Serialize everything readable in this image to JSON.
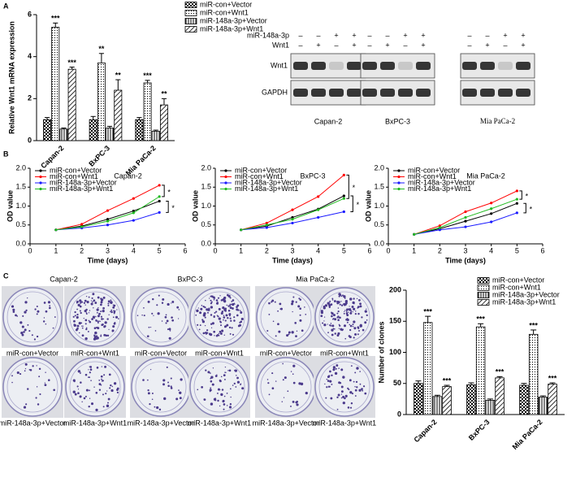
{
  "panel_labels": [
    "A",
    "B",
    "C"
  ],
  "chart_data": [
    {
      "type": "bar",
      "ylabel": "Relative Wnt1 mRNA expression",
      "categories": [
        "Capan-2",
        "BxPC-3",
        "Mia PaCa-2"
      ],
      "ylim": [
        0,
        6
      ],
      "yticks": [
        0,
        2,
        4,
        6
      ],
      "series": [
        {
          "name": "miR-con+Vector",
          "color": "#000000",
          "pattern": "checker",
          "values": [
            1.0,
            1.0,
            1.0
          ],
          "errors": [
            0.1,
            0.15,
            0.1
          ]
        },
        {
          "name": "miR-con+Wnt1",
          "color": "#000000",
          "pattern": "dots",
          "values": [
            5.4,
            3.7,
            2.75
          ],
          "errors": [
            0.2,
            0.45,
            0.12
          ],
          "significance": [
            "***",
            "**",
            "***"
          ]
        },
        {
          "name": "miR-148a-3p+Vector",
          "color": "#000000",
          "pattern": "vlines",
          "values": [
            0.55,
            0.6,
            0.45
          ],
          "errors": [
            0.05,
            0.08,
            0.05
          ]
        },
        {
          "name": "miR-148a-3p+Wnt1",
          "color": "#000000",
          "pattern": "diag",
          "values": [
            3.4,
            2.4,
            1.7
          ],
          "errors": [
            0.1,
            0.5,
            0.3
          ],
          "significance": [
            "***",
            "**",
            "**"
          ]
        }
      ]
    },
    {
      "type": "line",
      "title": "Capan-2",
      "xlabel": "Time (days)",
      "ylabel": "OD value",
      "x": [
        1,
        2,
        3,
        4,
        5
      ],
      "xlim": [
        0,
        6
      ],
      "xticks": [
        0,
        1,
        2,
        3,
        4,
        5,
        6
      ],
      "ylim": [
        0,
        2
      ],
      "yticks": [
        {
          "value": 0,
          "label": "0.0"
        },
        0.5,
        {
          "value": 1,
          "label": "1.0"
        },
        1.5,
        {
          "value": 2,
          "label": "2.0"
        }
      ],
      "annotations": [
        "*",
        "*"
      ],
      "series": [
        {
          "name": "miR-con+Vector",
          "color": "#000000",
          "values": [
            0.37,
            0.47,
            0.65,
            0.87,
            1.13
          ]
        },
        {
          "name": "miR-con+Wnt1",
          "color": "#ff0000",
          "values": [
            0.37,
            0.52,
            0.88,
            1.2,
            1.55
          ]
        },
        {
          "name": "miR-148a-3p+Vector",
          "color": "#1a1aff",
          "values": [
            0.37,
            0.42,
            0.5,
            0.62,
            0.83
          ]
        },
        {
          "name": "miR-148a-3p+Wnt1",
          "color": "#22bb22",
          "values": [
            0.37,
            0.45,
            0.6,
            0.82,
            1.25
          ]
        }
      ]
    },
    {
      "type": "line",
      "title": "BxPC-3",
      "xlabel": "Time (days)",
      "ylabel": "OD value",
      "x": [
        1,
        2,
        3,
        4,
        5
      ],
      "xlim": [
        0,
        6
      ],
      "xticks": [
        0,
        1,
        2,
        3,
        4,
        5,
        6
      ],
      "ylim": [
        0,
        2
      ],
      "yticks": [
        {
          "value": 0,
          "label": "0.0"
        },
        0.5,
        {
          "value": 1,
          "label": "1.0"
        },
        1.5,
        {
          "value": 2,
          "label": "2.0"
        }
      ],
      "annotations": [
        "*",
        "*"
      ],
      "series": [
        {
          "name": "miR-con+Vector",
          "color": "#000000",
          "values": [
            0.37,
            0.47,
            0.7,
            0.92,
            1.27
          ]
        },
        {
          "name": "miR-con+Wnt1",
          "color": "#ff0000",
          "values": [
            0.37,
            0.55,
            0.9,
            1.25,
            1.82
          ]
        },
        {
          "name": "miR-148a-3p+Vector",
          "color": "#1a1aff",
          "values": [
            0.37,
            0.43,
            0.55,
            0.7,
            0.85
          ]
        },
        {
          "name": "miR-148a-3p+Wnt1",
          "color": "#22bb22",
          "values": [
            0.37,
            0.5,
            0.65,
            0.9,
            1.2
          ]
        }
      ]
    },
    {
      "type": "line",
      "title": "Mia PaCa-2",
      "xlabel": "Time (days)",
      "ylabel": "OD value",
      "x": [
        1,
        2,
        3,
        4,
        5
      ],
      "xlim": [
        0,
        6
      ],
      "xticks": [
        0,
        1,
        2,
        3,
        4,
        5,
        6
      ],
      "ylim": [
        0,
        2
      ],
      "yticks": [
        {
          "value": 0,
          "label": "0.0"
        },
        0.5,
        {
          "value": 1,
          "label": "1.0"
        },
        1.5,
        {
          "value": 2,
          "label": "2.0"
        }
      ],
      "annotations": [
        "*",
        "*"
      ],
      "series": [
        {
          "name": "miR-con+Vector",
          "color": "#000000",
          "values": [
            0.25,
            0.4,
            0.6,
            0.8,
            1.07
          ]
        },
        {
          "name": "miR-con+Wnt1",
          "color": "#ff0000",
          "values": [
            0.25,
            0.48,
            0.85,
            1.08,
            1.4
          ]
        },
        {
          "name": "miR-148a-3p+Vector",
          "color": "#1a1aff",
          "values": [
            0.25,
            0.37,
            0.45,
            0.58,
            0.82
          ]
        },
        {
          "name": "miR-148a-3p+Wnt1",
          "color": "#22bb22",
          "values": [
            0.25,
            0.43,
            0.7,
            0.93,
            1.18
          ]
        }
      ]
    },
    {
      "type": "bar",
      "ylabel": "Number of clones",
      "categories": [
        "Capan-2",
        "BxPC-3",
        "Mia PaCa-2"
      ],
      "ylim": [
        0,
        200
      ],
      "yticks": [
        0,
        50,
        100,
        150,
        200
      ],
      "series": [
        {
          "name": "miR-con+Vector",
          "color": "#000000",
          "pattern": "checker",
          "values": [
            50,
            48,
            47
          ],
          "errors": [
            4,
            3,
            3
          ]
        },
        {
          "name": "miR-con+Wnt1",
          "color": "#000000",
          "pattern": "dots",
          "values": [
            148,
            141,
            129
          ],
          "errors": [
            10,
            5,
            7
          ],
          "significance": [
            "***",
            "***",
            "***"
          ]
        },
        {
          "name": "miR-148a-3p+Vector",
          "color": "#000000",
          "pattern": "vlines",
          "values": [
            29,
            23,
            28
          ],
          "errors": [
            2,
            2,
            2
          ]
        },
        {
          "name": "miR-148a-3p+Wnt1",
          "color": "#000000",
          "pattern": "diag",
          "values": [
            45,
            59,
            49
          ],
          "errors": [
            2,
            2,
            2
          ],
          "significance": [
            "***",
            "***",
            "***"
          ]
        }
      ]
    }
  ],
  "blot": {
    "sign_labels": [
      "miR-148a-3p",
      "Wnt1"
    ],
    "signs": [
      [
        "–",
        "–",
        "+",
        "+",
        "–",
        "–",
        "+",
        "+",
        "–",
        "–",
        "+",
        "+"
      ],
      [
        "–",
        "+",
        "–",
        "+",
        "–",
        "+",
        "–",
        "+",
        "–",
        "+",
        "–",
        "+"
      ]
    ],
    "band_labels": [
      "Wnt1",
      "GAPDH"
    ],
    "cell_lines": [
      "Capan-2",
      "BxPC-3",
      "Mia PaCa-2"
    ]
  },
  "colony": {
    "columns": [
      "Capan-2",
      "BxPC-3",
      "Mia PaCa-2"
    ],
    "captions": [
      "miR-con+Vector",
      "miR-con+Wnt1",
      "miR-148a-3p+Vector",
      "miR-148a-3p+Wnt1"
    ]
  }
}
